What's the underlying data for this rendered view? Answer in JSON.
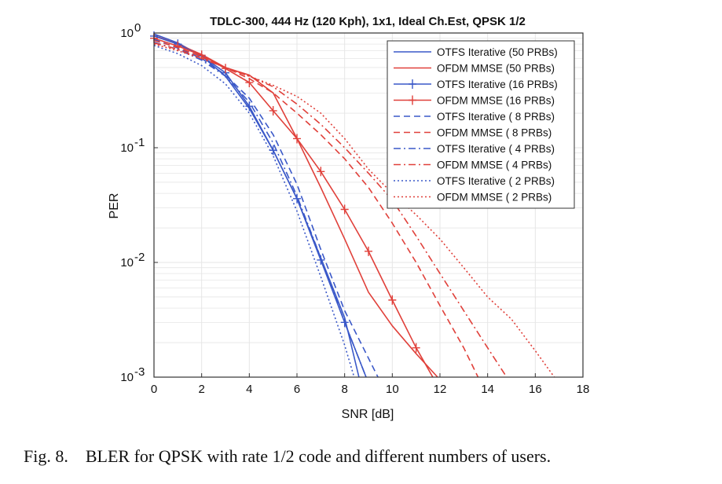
{
  "caption": {
    "figure_number": "Fig. 8.",
    "text": "BLER for QPSK with rate 1/2 code and different numbers of users."
  },
  "colors": {
    "otfs": "#3a58c8",
    "ofdm": "#e0403a",
    "grid": "#e6e6e6",
    "axis": "#333333"
  },
  "chart_data": {
    "type": "line",
    "title": "TDLC-300, 444 Hz (120 Kph), 1x1, Ideal Ch.Est, QPSK 1/2",
    "xlabel": "SNR [dB]",
    "ylabel": "PER",
    "xlim": [
      0,
      18
    ],
    "ylim": [
      0.001,
      1
    ],
    "yscale": "log",
    "grid": true,
    "legend_position": "top-right",
    "xticks": [
      0,
      2,
      4,
      6,
      8,
      10,
      12,
      14,
      16,
      18
    ],
    "xtick_labels": [
      "0",
      "2",
      "4",
      "6",
      "8",
      "10",
      "12",
      "14",
      "16",
      "18"
    ],
    "yticks": [
      1,
      0.1,
      0.01,
      0.001
    ],
    "ytick_labels": [
      {
        "base": "10",
        "exp": "0"
      },
      {
        "base": "10",
        "exp": "-1"
      },
      {
        "base": "10",
        "exp": "-2"
      },
      {
        "base": "10",
        "exp": "-3"
      }
    ],
    "series": [
      {
        "name": "OTFS Iterative (50 PRBs)",
        "color": "#3a58c8",
        "style": "solid",
        "marker": "none",
        "x": [
          0,
          1,
          2,
          3,
          4,
          5,
          6,
          7,
          8,
          8.6
        ],
        "y": [
          0.98,
          0.82,
          0.63,
          0.42,
          0.22,
          0.095,
          0.036,
          0.011,
          0.0033,
          0.001
        ]
      },
      {
        "name": "OFDM MMSE (50 PRBs)",
        "color": "#e0403a",
        "style": "solid",
        "marker": "none",
        "x": [
          0,
          1,
          2,
          3,
          4,
          5,
          6,
          7,
          8,
          9,
          10,
          11,
          11.9
        ],
        "y": [
          0.95,
          0.8,
          0.65,
          0.5,
          0.43,
          0.3,
          0.12,
          0.045,
          0.016,
          0.0055,
          0.0028,
          0.0016,
          0.001
        ]
      },
      {
        "name": "OTFS Iterative (16 PRBs)",
        "color": "#3a58c8",
        "style": "solid",
        "marker": "plus",
        "x": [
          0,
          1,
          2,
          3,
          4,
          5,
          6,
          7,
          8,
          8.9
        ],
        "y": [
          0.94,
          0.8,
          0.63,
          0.45,
          0.23,
          0.095,
          0.036,
          0.0105,
          0.003,
          0.001
        ]
      },
      {
        "name": "OFDM MMSE (16 PRBs)",
        "color": "#e0403a",
        "style": "solid",
        "marker": "plus",
        "x": [
          0,
          1,
          2,
          3,
          4,
          5,
          6,
          7,
          8,
          9,
          10,
          11,
          11.7
        ],
        "y": [
          0.9,
          0.77,
          0.64,
          0.49,
          0.37,
          0.21,
          0.12,
          0.062,
          0.029,
          0.0125,
          0.0047,
          0.0018,
          0.001
        ]
      },
      {
        "name": "OTFS Iterative ( 8 PRBs)",
        "color": "#3a58c8",
        "style": "dashed",
        "marker": "none",
        "x": [
          0,
          1,
          2,
          3,
          4,
          5,
          6,
          7,
          8,
          9.4
        ],
        "y": [
          0.88,
          0.74,
          0.6,
          0.43,
          0.27,
          0.13,
          0.048,
          0.013,
          0.0038,
          0.001
        ]
      },
      {
        "name": "OFDM MMSE ( 8 PRBs)",
        "color": "#e0403a",
        "style": "dashed",
        "marker": "none",
        "x": [
          0,
          1,
          2,
          3,
          4,
          5,
          6,
          7,
          8,
          9,
          10,
          11,
          12,
          13,
          13.6
        ],
        "y": [
          0.86,
          0.75,
          0.62,
          0.5,
          0.4,
          0.3,
          0.2,
          0.13,
          0.08,
          0.045,
          0.022,
          0.01,
          0.0042,
          0.0018,
          0.001
        ]
      },
      {
        "name": "OTFS Iterative ( 4 PRBs)",
        "color": "#3a58c8",
        "style": "dashdot",
        "marker": "none",
        "x": [
          0,
          1,
          2,
          3,
          4,
          5,
          6,
          7,
          8,
          8.9
        ],
        "y": [
          0.83,
          0.72,
          0.58,
          0.42,
          0.25,
          0.11,
          0.038,
          0.011,
          0.003,
          0.001
        ]
      },
      {
        "name": "OFDM MMSE ( 4 PRBs)",
        "color": "#e0403a",
        "style": "dashdot",
        "marker": "none",
        "x": [
          0,
          1,
          2,
          3,
          4,
          5,
          6,
          7,
          8,
          9,
          10,
          11,
          12,
          13,
          14,
          14.8
        ],
        "y": [
          0.82,
          0.72,
          0.6,
          0.5,
          0.42,
          0.34,
          0.24,
          0.16,
          0.1,
          0.06,
          0.035,
          0.017,
          0.008,
          0.0038,
          0.0018,
          0.001
        ]
      },
      {
        "name": "OTFS Iterative ( 2 PRBs)",
        "color": "#3a58c8",
        "style": "dotted",
        "marker": "none",
        "x": [
          0,
          1,
          2,
          3,
          4,
          5,
          6,
          7,
          8,
          8.4
        ],
        "y": [
          0.78,
          0.66,
          0.52,
          0.36,
          0.2,
          0.085,
          0.028,
          0.0075,
          0.0019,
          0.001
        ]
      },
      {
        "name": "OFDM MMSE ( 2 PRBs)",
        "color": "#e0403a",
        "style": "dotted",
        "marker": "none",
        "x": [
          0,
          1,
          2,
          3,
          4,
          5,
          6,
          7,
          8,
          9,
          10,
          11,
          12,
          13,
          14,
          15,
          16,
          16.8
        ],
        "y": [
          0.8,
          0.7,
          0.6,
          0.5,
          0.42,
          0.35,
          0.28,
          0.2,
          0.12,
          0.065,
          0.04,
          0.026,
          0.016,
          0.009,
          0.005,
          0.0032,
          0.0017,
          0.001
        ]
      }
    ]
  }
}
